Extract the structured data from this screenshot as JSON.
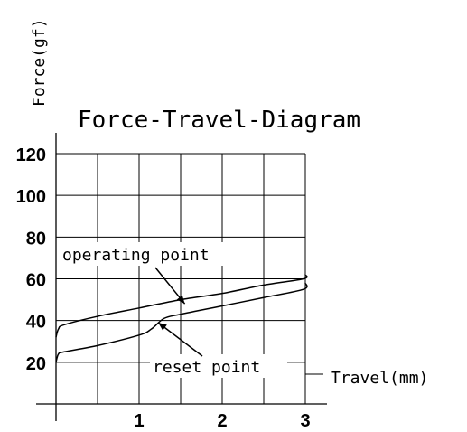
{
  "chart_data": {
    "type": "line",
    "title": "Force-Travel-Diagram",
    "xlabel": "Travel(mm)",
    "ylabel": "Force(gf)",
    "xlim": [
      0,
      3
    ],
    "ylim": [
      0,
      120
    ],
    "xticks": [
      1,
      2,
      3
    ],
    "yticks": [
      20,
      40,
      60,
      80,
      100,
      120
    ],
    "grid": true,
    "series": [
      {
        "x": [
          0,
          0.03,
          0.1,
          0.5,
          1.0,
          1.5,
          2.0,
          2.5,
          2.98,
          3.0
        ],
        "y": [
          32,
          36,
          38,
          42,
          46,
          50,
          53,
          57,
          60,
          62
        ]
      },
      {
        "x": [
          0,
          0.03,
          0.1,
          0.5,
          1.0,
          1.15,
          1.3,
          1.5,
          2.0,
          2.5,
          2.98,
          3.0
        ],
        "y": [
          20,
          24,
          25,
          28,
          33,
          36,
          41,
          43,
          47,
          51,
          55,
          58
        ]
      }
    ],
    "annotations": [
      {
        "text": "operating point",
        "target": [
          1.55,
          48
        ]
      },
      {
        "text": "reset point",
        "target": [
          1.23,
          39
        ]
      }
    ],
    "colors": {
      "line": "#000000",
      "grid": "#000000",
      "background": "#ffffff"
    }
  }
}
